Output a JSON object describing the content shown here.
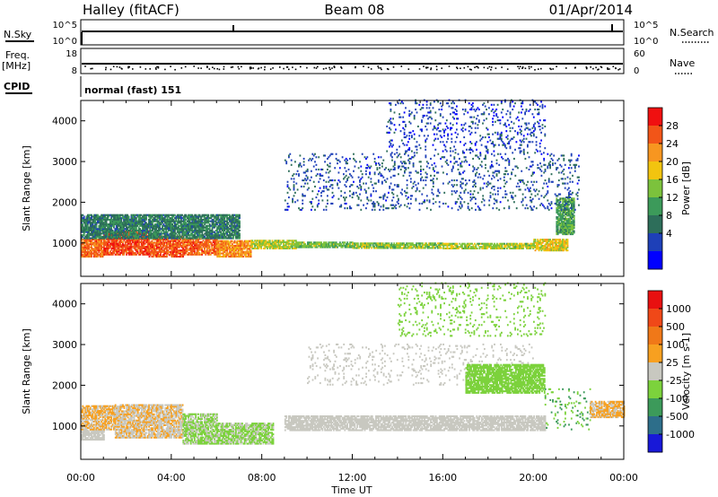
{
  "header": {
    "title": "Halley (fitACF)",
    "beam": "Beam 08",
    "date": "01/Apr/2014"
  },
  "nsky_panel": {
    "label": "N.Sky",
    "left_ticks": [
      "10^5",
      "10^0"
    ],
    "right_label": "N.Search",
    "right_ticks": [
      "10^5",
      "10^0"
    ],
    "trace_value": "10^3"
  },
  "freq_panel": {
    "label_line1": "Freq.",
    "label_line2": "[MHz]",
    "left_ticks": [
      "18",
      "8"
    ],
    "right_label": "Nave",
    "right_ticks": [
      "60",
      "0"
    ],
    "freq_value": 11
  },
  "cpid_panel": {
    "label": "CPID",
    "text": "normal (fast) 151"
  },
  "x_axis": {
    "label": "Time UT",
    "range_hours": [
      0,
      24
    ],
    "tick_values": [
      0,
      4,
      8,
      12,
      16,
      20,
      24
    ],
    "tick_labels": [
      "00:00",
      "04:00",
      "08:00",
      "12:00",
      "16:00",
      "20:00",
      "00:00"
    ]
  },
  "chart_data": [
    {
      "type": "heatmap",
      "title": "",
      "xlabel": "Time UT",
      "ylabel": "Slant Range [km]",
      "xlim_hours": [
        0,
        24
      ],
      "ylim_km": [
        180,
        4500
      ],
      "y_ticks": [
        1000,
        2000,
        3000,
        4000
      ],
      "colorbar": {
        "label": "Power [dB]",
        "tick_labels": [
          "28",
          "24",
          "20",
          "16",
          "12",
          "8",
          "4"
        ],
        "colors": [
          "#0000ff",
          "#1e40b8",
          "#2d6e5a",
          "#3c9a5a",
          "#7cc23c",
          "#f2c40f",
          "#f79620",
          "#f25518",
          "#f01010"
        ],
        "range": [
          0,
          30
        ]
      },
      "bands": [
        {
          "t": [
            0.0,
            1.0
          ],
          "km": [
            650,
            1100
          ],
          "value": 24
        },
        {
          "t": [
            1.0,
            3.0
          ],
          "km": [
            700,
            1300
          ],
          "value": 26
        },
        {
          "t": [
            3.0,
            4.5
          ],
          "km": [
            650,
            1150
          ],
          "value": 25
        },
        {
          "t": [
            4.5,
            6.0
          ],
          "km": [
            700,
            1100
          ],
          "value": 24
        },
        {
          "t": [
            6.0,
            7.5
          ],
          "km": [
            650,
            1050
          ],
          "value": 22
        },
        {
          "t": [
            7.5,
            9.5
          ],
          "km": [
            850,
            1050
          ],
          "value": 16
        },
        {
          "t": [
            9.5,
            12.0
          ],
          "km": [
            880,
            1000
          ],
          "value": 14
        },
        {
          "t": [
            12.0,
            16.0
          ],
          "km": [
            860,
            1000
          ],
          "value": 15
        },
        {
          "t": [
            16.0,
            20.0
          ],
          "km": [
            850,
            1000
          ],
          "value": 16
        },
        {
          "t": [
            20.0,
            21.5
          ],
          "km": [
            800,
            1100
          ],
          "value": 18
        },
        {
          "t": [
            21.0,
            21.8
          ],
          "km": [
            1200,
            2100
          ],
          "value": 12
        },
        {
          "t": [
            0.0,
            7.0
          ],
          "km": [
            1100,
            1700
          ],
          "value": 9
        },
        {
          "t": [
            9.0,
            22.0
          ],
          "km": [
            1800,
            3200
          ],
          "value": 6
        },
        {
          "t": [
            13.5,
            20.5
          ],
          "km": [
            3200,
            4500
          ],
          "value": 5
        }
      ]
    },
    {
      "type": "heatmap",
      "title": "",
      "xlabel": "Time UT",
      "ylabel": "Slant Range [km]",
      "xlim_hours": [
        0,
        24
      ],
      "ylim_km": [
        180,
        4500
      ],
      "y_ticks": [
        1000,
        2000,
        3000,
        4000
      ],
      "colorbar": {
        "label": "Velocity [m s-1]",
        "tick_labels": [
          "1000",
          "500",
          "100",
          "25",
          "-25",
          "-100",
          "-500",
          "-1000"
        ],
        "colors": [
          "#1818d8",
          "#2d6e8a",
          "#3c9a5a",
          "#7cd23c",
          "#c8c8c0",
          "#f7a020",
          "#f07818",
          "#f04818",
          "#e81010"
        ],
        "range": [
          -1200,
          1200
        ]
      },
      "bands": [
        {
          "t": [
            0.0,
            1.0
          ],
          "km": [
            650,
            900
          ],
          "value": 0
        },
        {
          "t": [
            0.0,
            1.5
          ],
          "km": [
            900,
            1500
          ],
          "value": 150
        },
        {
          "t": [
            1.5,
            4.5
          ],
          "km": [
            700,
            1500
          ],
          "value": 120
        },
        {
          "t": [
            4.5,
            6.0
          ],
          "km": [
            550,
            1300
          ],
          "value": -150
        },
        {
          "t": [
            6.0,
            8.5
          ],
          "km": [
            550,
            1050
          ],
          "value": -150
        },
        {
          "t": [
            9.0,
            20.5
          ],
          "km": [
            880,
            1250
          ],
          "value": 0
        },
        {
          "t": [
            10.0,
            20.0
          ],
          "km": [
            2000,
            3000
          ],
          "value": 0
        },
        {
          "t": [
            17.0,
            20.5
          ],
          "km": [
            1800,
            2500
          ],
          "value": -300
        },
        {
          "t": [
            20.5,
            22.5
          ],
          "km": [
            900,
            1900
          ],
          "value": -400
        },
        {
          "t": [
            22.5,
            24.0
          ],
          "km": [
            1200,
            1600
          ],
          "value": 150
        },
        {
          "t": [
            14.0,
            20.5
          ],
          "km": [
            3200,
            4500
          ],
          "value": -200
        }
      ]
    }
  ]
}
